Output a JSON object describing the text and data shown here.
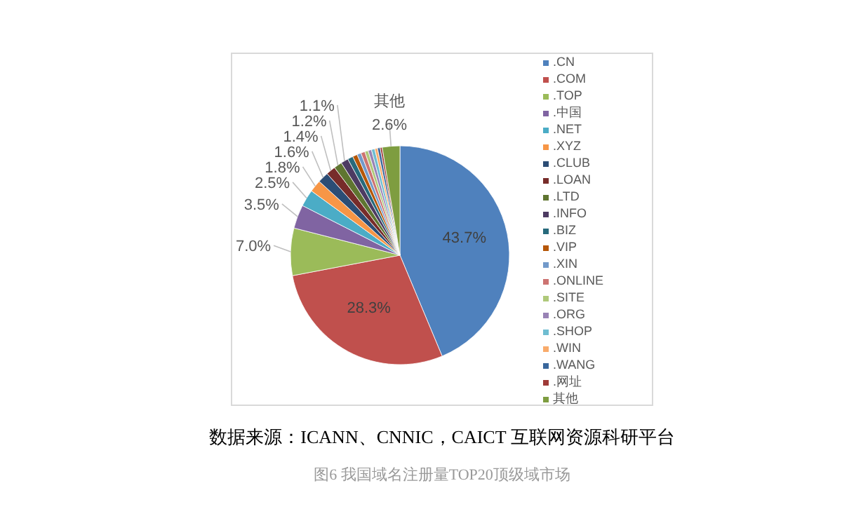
{
  "chart_data": {
    "type": "pie",
    "categories": [
      ".CN",
      ".COM",
      ".TOP",
      ".中国",
      ".NET",
      ".XYZ",
      ".CLUB",
      ".LOAN",
      ".LTD",
      ".INFO",
      ".BIZ",
      ".VIP",
      ".XIN",
      ".ONLINE",
      ".SITE",
      ".ORG",
      ".SHOP",
      ".WIN",
      ".WANG",
      ".网址",
      "其他"
    ],
    "values": [
      43.7,
      28.3,
      7.0,
      3.5,
      2.5,
      1.8,
      1.6,
      1.4,
      1.2,
      1.1,
      0.8,
      0.7,
      0.6,
      0.6,
      0.5,
      0.5,
      0.5,
      0.4,
      0.4,
      0.3,
      2.6
    ],
    "value_labels": [
      "43.7%",
      "28.3%",
      "7.0%",
      "3.5%",
      "2.5%",
      "1.8%",
      "1.6%",
      "1.4%",
      "1.2%",
      "1.1%",
      null,
      null,
      null,
      null,
      null,
      null,
      null,
      null,
      null,
      null,
      "其他\n2.6%"
    ],
    "colors": [
      "#4f81bd",
      "#c0504d",
      "#9bbb59",
      "#8064a2",
      "#4bacc6",
      "#f79646",
      "#2c4d75",
      "#772c2a",
      "#5f7530",
      "#4d3b62",
      "#276a7c",
      "#b65708",
      "#729aca",
      "#cd7371",
      "#afc97a",
      "#9983b5",
      "#6fbdd1",
      "#f9ab6b",
      "#3a679c",
      "#9f3b38",
      "#7e9d40"
    ],
    "legend": "right",
    "annotations": [
      "数据来源：ICANN、CNNIC，CAICT 互联网资源科研平台",
      "图6 我国域名注册量TOP20顶级域市场"
    ]
  }
}
